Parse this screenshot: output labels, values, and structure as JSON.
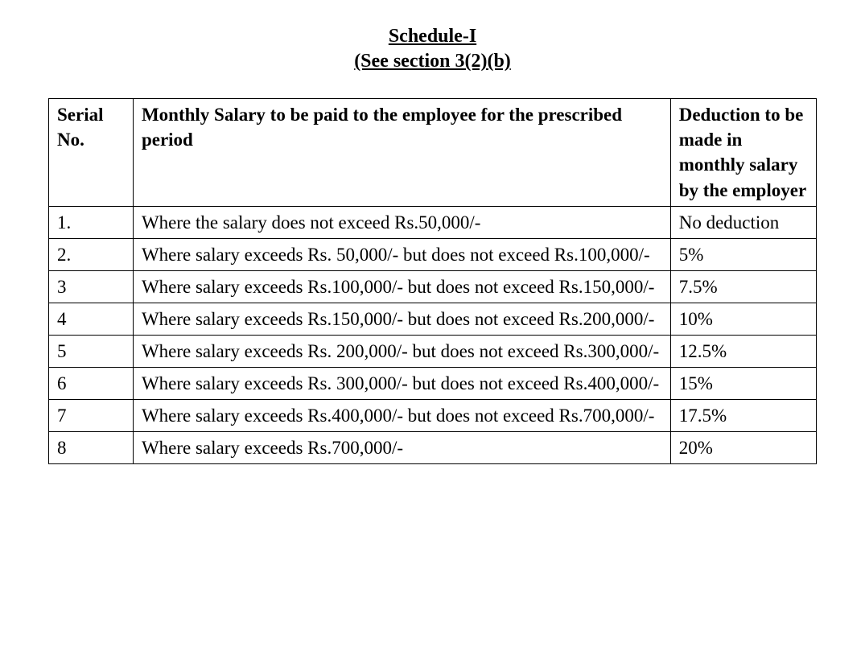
{
  "heading": {
    "line1": "Schedule-I",
    "line2": "(See section 3(2)(b)"
  },
  "table": {
    "columns": [
      {
        "header": "Serial No.",
        "width_pct": 11
      },
      {
        "header": "Monthly Salary to be paid to the employee for the prescribed period",
        "width_pct": 70
      },
      {
        "header": "Deduction to be made in monthly salary by the employer",
        "width_pct": 19
      }
    ],
    "rows": [
      {
        "serial": "1.",
        "salary": "Where the salary does not exceed Rs.50,000/-",
        "deduction": "No deduction"
      },
      {
        "serial": "2.",
        "salary": "Where salary exceeds Rs. 50,000/- but does not exceed Rs.100,000/-",
        "deduction": "5%"
      },
      {
        "serial": "3",
        "salary": "Where salary exceeds Rs.100,000/- but does not exceed Rs.150,000/-",
        "deduction": "7.5%"
      },
      {
        "serial": "4",
        "salary": "Where salary exceeds Rs.150,000/- but does not exceed Rs.200,000/-",
        "deduction": "10%"
      },
      {
        "serial": "5",
        "salary": "Where salary exceeds Rs. 200,000/- but does not exceed Rs.300,000/-",
        "deduction": "12.5%"
      },
      {
        "serial": "6",
        "salary": "Where salary exceeds Rs. 300,000/- but does not exceed Rs.400,000/-",
        "deduction": "15%"
      },
      {
        "serial": "7",
        "salary": "Where salary exceeds Rs.400,000/- but does not exceed Rs.700,000/-",
        "deduction": "17.5%"
      },
      {
        "serial": "8",
        "salary": "Where salary exceeds Rs.700,000/-",
        "deduction": "20%"
      }
    ],
    "border_color": "#000000",
    "font_family": "Times New Roman",
    "header_fontsize": 23,
    "body_fontsize": 23,
    "background_color": "#ffffff",
    "text_color": "#000000"
  }
}
